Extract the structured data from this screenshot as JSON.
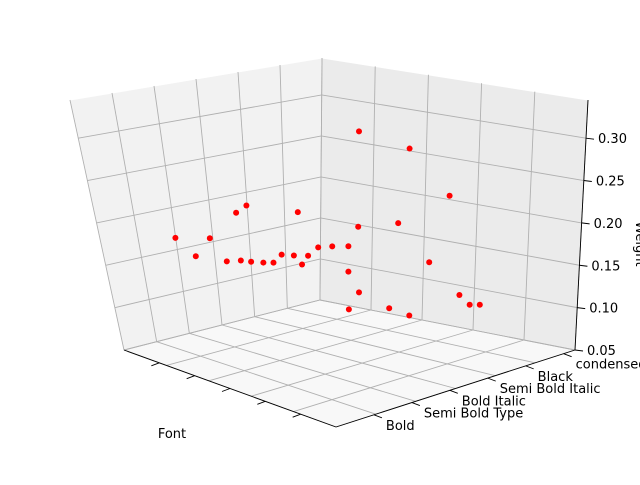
{
  "chart_data": {
    "type": "scatter",
    "title": "",
    "xlabel": "Font",
    "ylabel": "",
    "zlabel": "Weight",
    "x_tick_labels": [
      "",
      "",
      "",
      "",
      ""
    ],
    "y_tick_labels": [
      "Bold",
      "Semi Bold Type",
      "Bold Italic",
      "Semi Bold Italic",
      "Black",
      "condensed bold"
    ],
    "z_tick_labels": [
      "0.05",
      "0.10",
      "0.15",
      "0.20",
      "0.25",
      "0.30"
    ],
    "zlim": [
      0.05,
      0.345
    ],
    "grid": true,
    "legend": "none",
    "marker_color": "#ff0000",
    "pane_colors": {
      "left_wall": "#f2f2f2",
      "back_wall": "#ebebeb",
      "floor": "#f8f8f8",
      "grid": "#b0b0b0"
    },
    "points": [
      {
        "x": 0.15,
        "y": 0.1,
        "z": 0.19
      },
      {
        "x": 0.6,
        "y": 0.55,
        "z": 0.33
      },
      {
        "x": 0.7,
        "y": 0.7,
        "z": 0.31
      },
      {
        "x": 0.3,
        "y": 0.3,
        "z": 0.23
      },
      {
        "x": 0.27,
        "y": 0.28,
        "z": 0.22
      },
      {
        "x": 0.22,
        "y": 0.2,
        "z": 0.19
      },
      {
        "x": 0.45,
        "y": 0.4,
        "z": 0.23
      },
      {
        "x": 0.75,
        "y": 0.85,
        "z": 0.25
      },
      {
        "x": 0.6,
        "y": 0.75,
        "z": 0.21
      },
      {
        "x": 0.55,
        "y": 0.6,
        "z": 0.21
      },
      {
        "x": 0.2,
        "y": 0.15,
        "z": 0.17
      },
      {
        "x": 0.3,
        "y": 0.2,
        "z": 0.17
      },
      {
        "x": 0.32,
        "y": 0.25,
        "z": 0.17
      },
      {
        "x": 0.35,
        "y": 0.27,
        "z": 0.17
      },
      {
        "x": 0.38,
        "y": 0.3,
        "z": 0.17
      },
      {
        "x": 0.4,
        "y": 0.33,
        "z": 0.17
      },
      {
        "x": 0.42,
        "y": 0.35,
        "z": 0.18
      },
      {
        "x": 0.45,
        "y": 0.38,
        "z": 0.18
      },
      {
        "x": 0.47,
        "y": 0.4,
        "z": 0.17
      },
      {
        "x": 0.48,
        "y": 0.42,
        "z": 0.18
      },
      {
        "x": 0.5,
        "y": 0.45,
        "z": 0.19
      },
      {
        "x": 0.52,
        "y": 0.5,
        "z": 0.19
      },
      {
        "x": 0.55,
        "y": 0.55,
        "z": 0.19
      },
      {
        "x": 0.55,
        "y": 0.55,
        "z": 0.16
      },
      {
        "x": 0.7,
        "y": 0.8,
        "z": 0.17
      },
      {
        "x": 0.6,
        "y": 0.55,
        "z": 0.14
      },
      {
        "x": 0.65,
        "y": 0.65,
        "z": 0.12
      },
      {
        "x": 0.58,
        "y": 0.52,
        "z": 0.12
      },
      {
        "x": 0.68,
        "y": 0.72,
        "z": 0.11
      },
      {
        "x": 0.75,
        "y": 0.9,
        "z": 0.13
      },
      {
        "x": 0.78,
        "y": 0.92,
        "z": 0.12
      },
      {
        "x": 0.8,
        "y": 0.95,
        "z": 0.12
      }
    ]
  }
}
